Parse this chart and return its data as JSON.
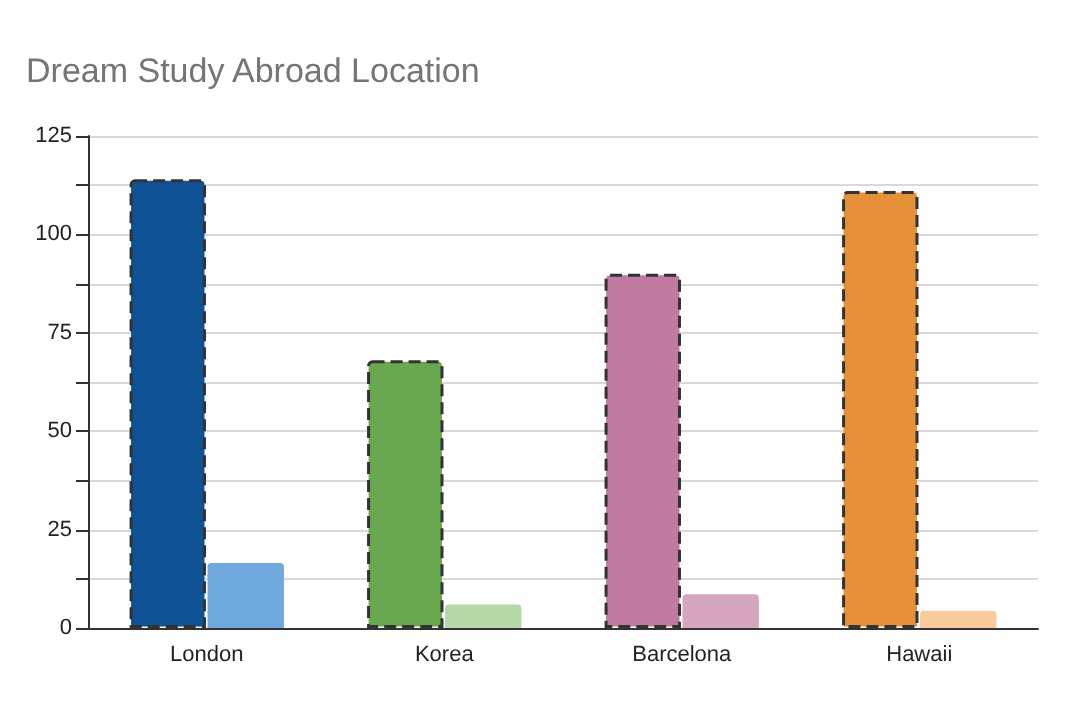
{
  "chart_data": {
    "type": "bar",
    "title": "Dream Study Abroad Location",
    "categories": [
      "London",
      "Korea",
      "Barcelona",
      "Hawaii"
    ],
    "series": [
      {
        "colors": [
          "#0f5296",
          "#6aa84f",
          "#c27ba0",
          "#e69138"
        ],
        "values": [
          114,
          68,
          90,
          111
        ],
        "line_style": "dashed"
      },
      {
        "colors": [
          "#6fa8dc",
          "#b6d7a8",
          "#d5a6bd",
          "#f9cb9c"
        ],
        "values": [
          16.5,
          6,
          8.6,
          4.4
        ]
      }
    ],
    "ylim": [
      0,
      125
    ],
    "yticks": [
      0,
      {
        "value": 12.5,
        "label": null
      },
      25,
      {
        "value": 37.5,
        "label": null
      },
      50,
      {
        "value": 62.5,
        "label": null
      },
      75,
      {
        "value": 87.5,
        "label": null
      },
      100,
      {
        "value": 112.5,
        "label": null
      },
      125
    ],
    "grid": "y"
  }
}
